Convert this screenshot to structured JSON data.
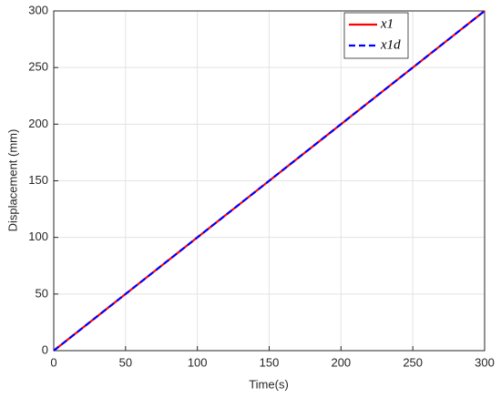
{
  "chart_data": {
    "type": "line",
    "xlabel": "Time(s)",
    "ylabel": "Displacement (mm)",
    "x": [
      0,
      300
    ],
    "series": [
      {
        "name": "x1",
        "color": "#ff0000",
        "dash": false,
        "values": [
          0,
          300
        ]
      },
      {
        "name": "x1d",
        "color": "#0000ff",
        "dash": true,
        "values": [
          0,
          300
        ]
      }
    ],
    "xlim": [
      0,
      300
    ],
    "ylim": [
      0,
      300
    ],
    "xticks": [
      0,
      50,
      100,
      150,
      200,
      250,
      300
    ],
    "yticks": [
      0,
      50,
      100,
      150,
      200,
      250,
      300
    ],
    "grid": true,
    "legend": "northeast"
  }
}
